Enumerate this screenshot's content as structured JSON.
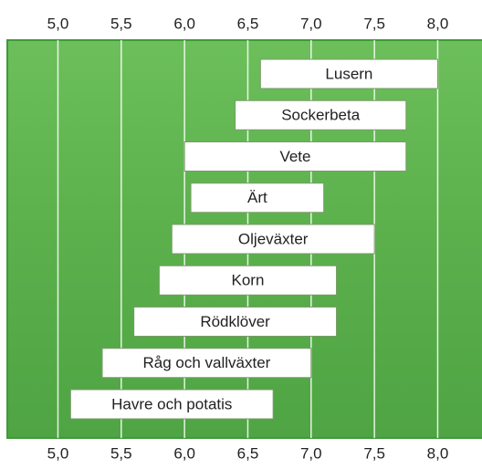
{
  "chart_data": {
    "type": "floating-bar",
    "categories": [
      "Lusern",
      "Sockerbeta",
      "Vete",
      "Ärt",
      "Oljeväxter",
      "Korn",
      "Rödklöver",
      "Råg och vallväxter",
      "Havre och potatis"
    ],
    "starts": [
      6.6,
      6.4,
      6.0,
      6.05,
      5.9,
      5.8,
      5.6,
      5.35,
      5.1
    ],
    "ends": [
      8.0,
      7.75,
      7.75,
      7.1,
      7.5,
      7.2,
      7.2,
      7.0,
      6.7
    ],
    "color": "#ffffff",
    "xlim": [
      4.6,
      8.35
    ],
    "xticks": [
      {
        "value": 5.0,
        "label": "5,0"
      },
      {
        "value": 5.5,
        "label": "5,5"
      },
      {
        "value": 6.0,
        "label": "6,0"
      },
      {
        "value": 6.5,
        "label": "6,5"
      },
      {
        "value": 7.0,
        "label": "7,0"
      },
      {
        "value": 7.5,
        "label": "7,5"
      },
      {
        "value": 8.0,
        "label": "8,0"
      }
    ],
    "grid": true
  }
}
